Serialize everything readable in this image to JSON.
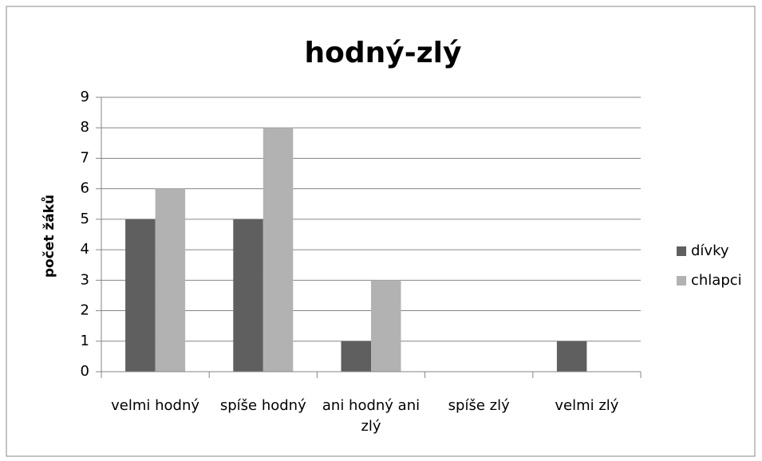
{
  "chart_data": {
    "type": "bar",
    "title": "hodný-zlý",
    "ylabel": "počet žáků",
    "categories": [
      "velmi hodný",
      "spíše hodný",
      "ani hodný ani zlý",
      "spíše zlý",
      "velmi zlý"
    ],
    "series": [
      {
        "name": "dívky",
        "color": "#5f5f5f",
        "values": [
          5,
          5,
          1,
          0,
          1
        ]
      },
      {
        "name": "chlapci",
        "color": "#b2b2b2",
        "values": [
          6,
          8,
          3,
          0,
          0
        ]
      }
    ],
    "ylim": [
      0,
      9
    ],
    "yticks": [
      0,
      1,
      2,
      3,
      4,
      5,
      6,
      7,
      8,
      9
    ],
    "grid": true,
    "legend": "right"
  }
}
